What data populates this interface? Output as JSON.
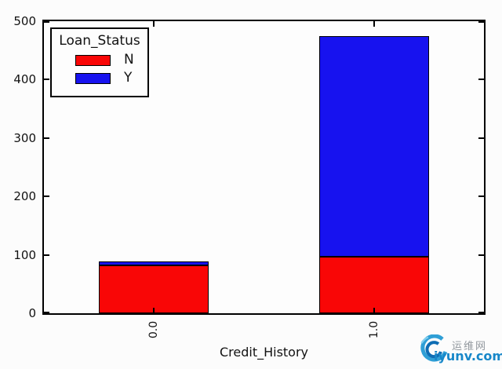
{
  "colors": {
    "background": "#fcfcfc",
    "frame": "#000000",
    "series_N": "#f90606",
    "series_Y": "#1712ef",
    "watermark_blue": "#1787c9",
    "watermark_gray": "#92989e"
  },
  "chart_data": {
    "type": "bar",
    "stacked": true,
    "categories": [
      "0.0",
      "1.0"
    ],
    "series": [
      {
        "name": "N",
        "color": "#f90606",
        "values": [
          82,
          97
        ]
      },
      {
        "name": "Y",
        "color": "#1712ef",
        "values": [
          7,
          378
        ]
      }
    ],
    "title": "",
    "xlabel": "Credit_History",
    "ylabel": "",
    "ylim": [
      0,
      500
    ],
    "yticks": [
      0,
      100,
      200,
      300,
      400,
      500
    ],
    "bar_totals": [
      89,
      475
    ],
    "xtick_rotation": 90,
    "grid": false,
    "legend": {
      "title": "Loan_Status",
      "position": "upper-left"
    }
  },
  "watermark": {
    "logo": "wave-swirl-logo",
    "site_name_cn": "运维网",
    "site_url": "iyunv.com"
  }
}
